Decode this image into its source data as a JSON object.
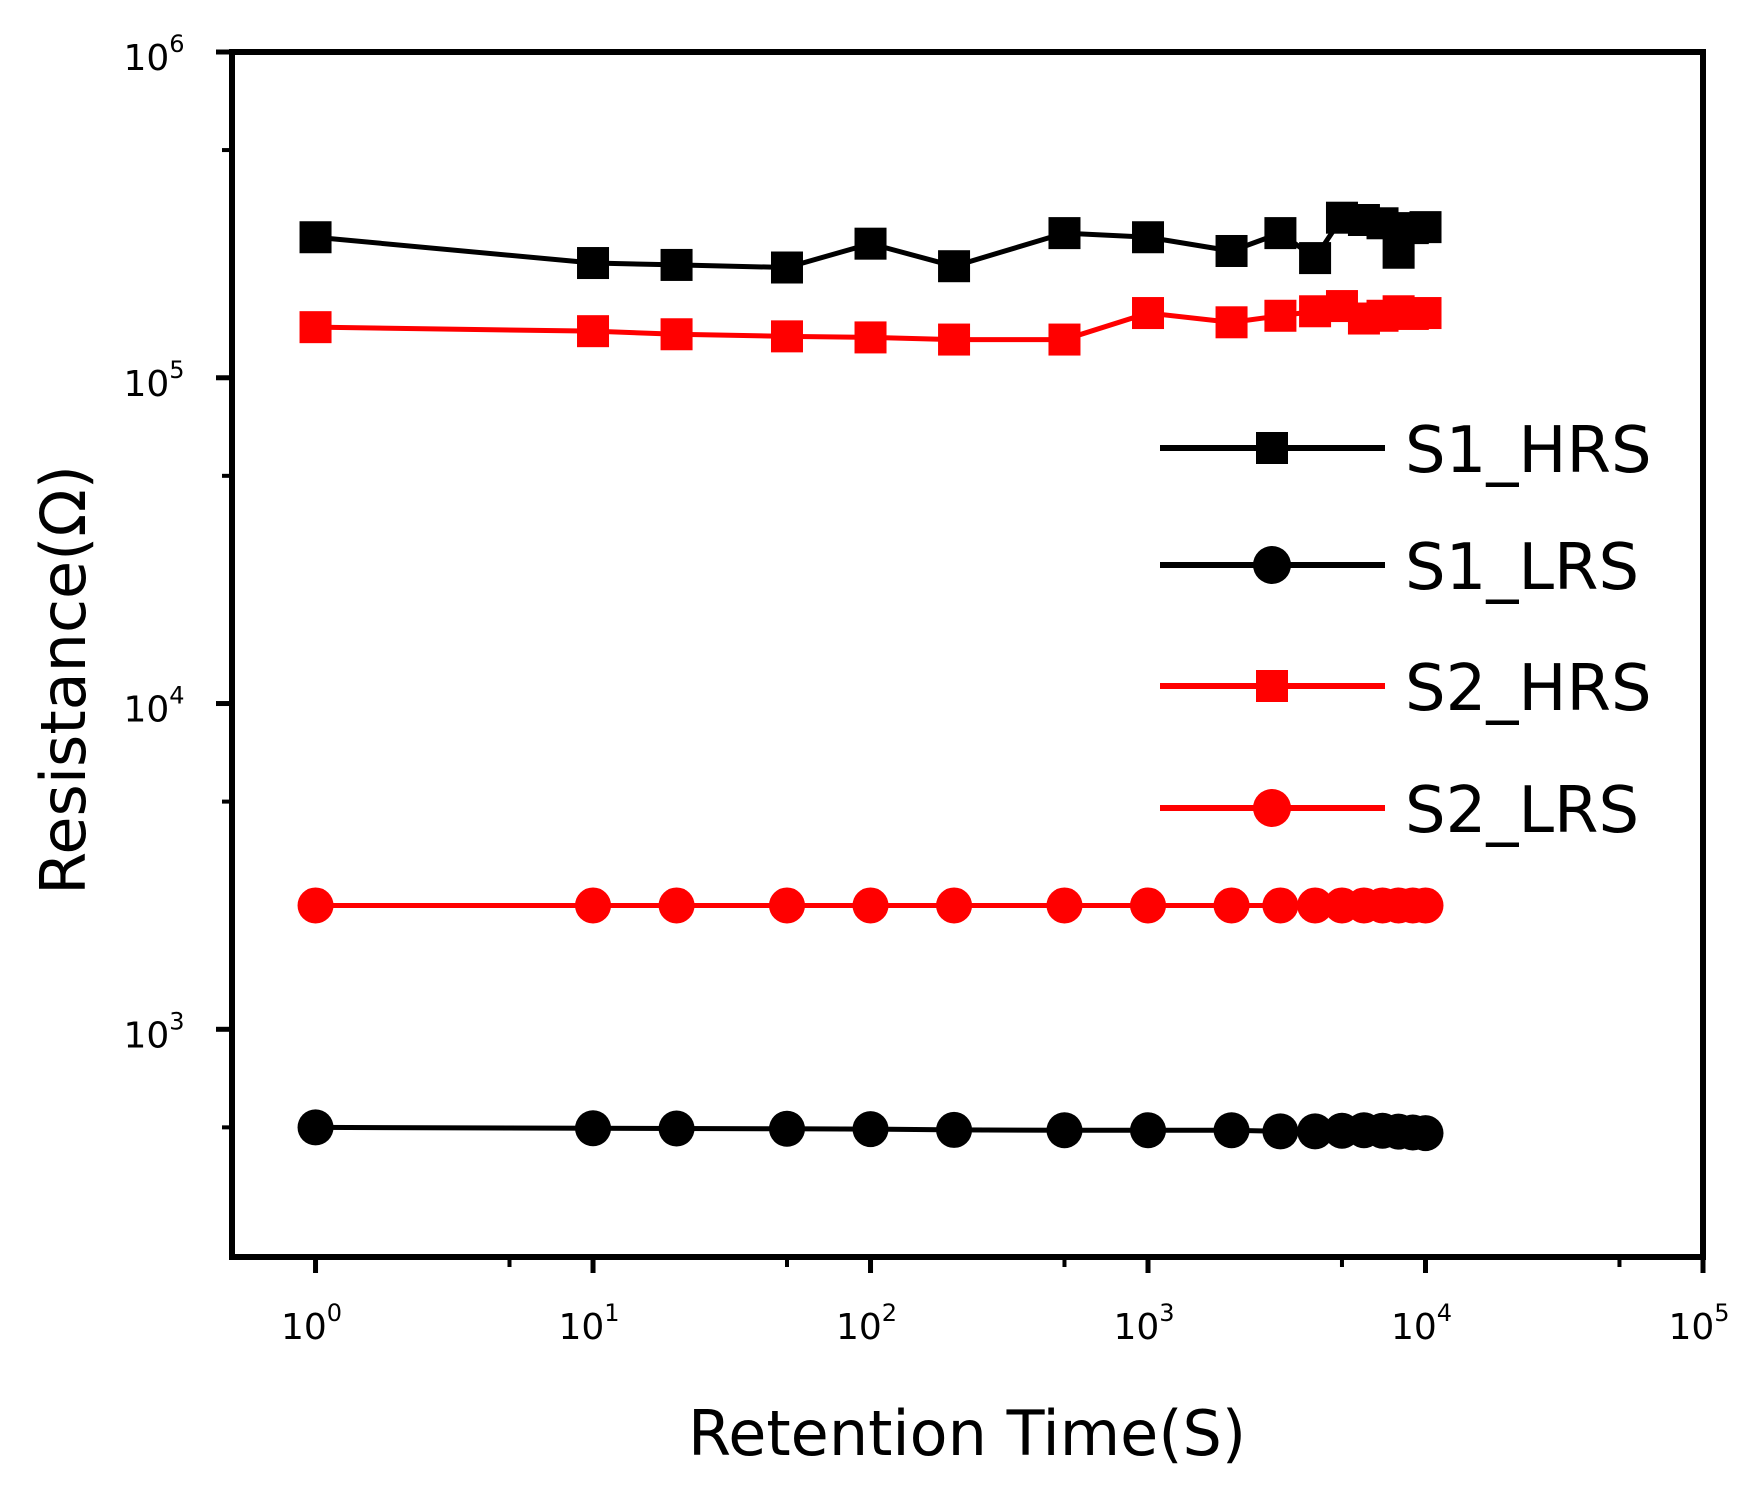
{
  "chart_data": {
    "type": "line",
    "title": "",
    "xlabel": "Retention Time(S)",
    "ylabel": "Resistance(Ω)",
    "xscale": "log",
    "yscale": "log",
    "xlim": [
      0.5,
      100000
    ],
    "ylim": [
      200,
      1000000
    ],
    "x_ticks": [
      {
        "base": "10",
        "exp": "0",
        "value": 1
      },
      {
        "base": "10",
        "exp": "1",
        "value": 10
      },
      {
        "base": "10",
        "exp": "2",
        "value": 100
      },
      {
        "base": "10",
        "exp": "3",
        "value": 1000
      },
      {
        "base": "10",
        "exp": "4",
        "value": 10000
      },
      {
        "base": "10",
        "exp": "5",
        "value": 100000
      }
    ],
    "y_ticks": [
      {
        "base": "10",
        "exp": "3",
        "value": 1000
      },
      {
        "base": "10",
        "exp": "4",
        "value": 10000
      },
      {
        "base": "10",
        "exp": "5",
        "value": 100000
      },
      {
        "base": "10",
        "exp": "6",
        "value": 1000000
      }
    ],
    "legend_position": "right",
    "x": [
      1,
      10,
      20,
      50,
      100,
      200,
      500,
      1000,
      2000,
      3000,
      4000,
      5000,
      6000,
      7000,
      8000,
      9000,
      10000
    ],
    "series": [
      {
        "name": "S1_HRS",
        "color": "#000000",
        "marker": "square",
        "values": [
          270000,
          225000,
          222000,
          218000,
          258000,
          220000,
          278000,
          270000,
          245000,
          278000,
          233000,
          310000,
          305000,
          298000,
          242000,
          288000,
          290000
        ]
      },
      {
        "name": "S1_LRS",
        "color": "#000000",
        "marker": "circle",
        "values": [
          500,
          497,
          496,
          495,
          494,
          491,
          490,
          490,
          490,
          486,
          486,
          488,
          490,
          488,
          485,
          482,
          480
        ]
      },
      {
        "name": "S2_HRS",
        "color": "#ff0000",
        "marker": "square",
        "values": [
          143000,
          139000,
          136000,
          134000,
          133000,
          131000,
          131000,
          158000,
          148000,
          155000,
          160000,
          166000,
          152000,
          155000,
          160000,
          157000,
          158000
        ]
      },
      {
        "name": "S2_LRS",
        "color": "#ff0000",
        "marker": "circle",
        "values": [
          2400,
          2400,
          2400,
          2400,
          2400,
          2400,
          2400,
          2400,
          2400,
          2400,
          2400,
          2400,
          2400,
          2400,
          2400,
          2400,
          2400
        ]
      }
    ]
  }
}
